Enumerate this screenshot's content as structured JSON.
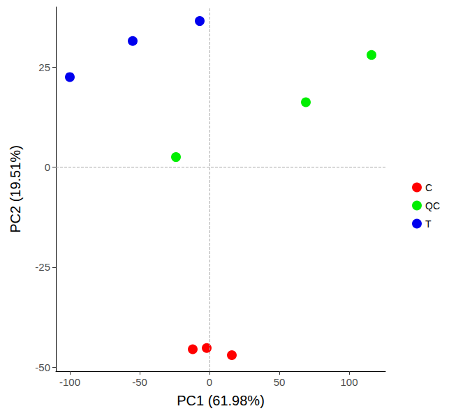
{
  "chart_data": {
    "type": "scatter",
    "x_label": "PC1 (61.98%)",
    "y_label": "PC2 (19.51%)",
    "series": [
      {
        "name": "C",
        "color": "#ff0000",
        "x": [
          -12,
          -2,
          16
        ],
        "values": [
          -45.5,
          -45.2,
          -47
        ]
      },
      {
        "name": "QC",
        "color": "#00ee00",
        "x": [
          -24,
          69,
          116
        ],
        "values": [
          2.5,
          16.2,
          28
        ]
      },
      {
        "name": "T",
        "color": "#0000ee",
        "x": [
          -100,
          -55,
          -7
        ],
        "values": [
          22.5,
          31.5,
          36.5
        ]
      }
    ],
    "xlim": [
      -110,
      126
    ],
    "xticks": [
      -100,
      -50,
      0,
      50,
      100
    ],
    "ylim": [
      -51,
      40
    ],
    "yticks": [
      -50,
      -25,
      0,
      25
    ],
    "hlines": [
      0
    ],
    "vlines": [
      0
    ],
    "grid": false,
    "legend": "right",
    "marker": "circle"
  }
}
